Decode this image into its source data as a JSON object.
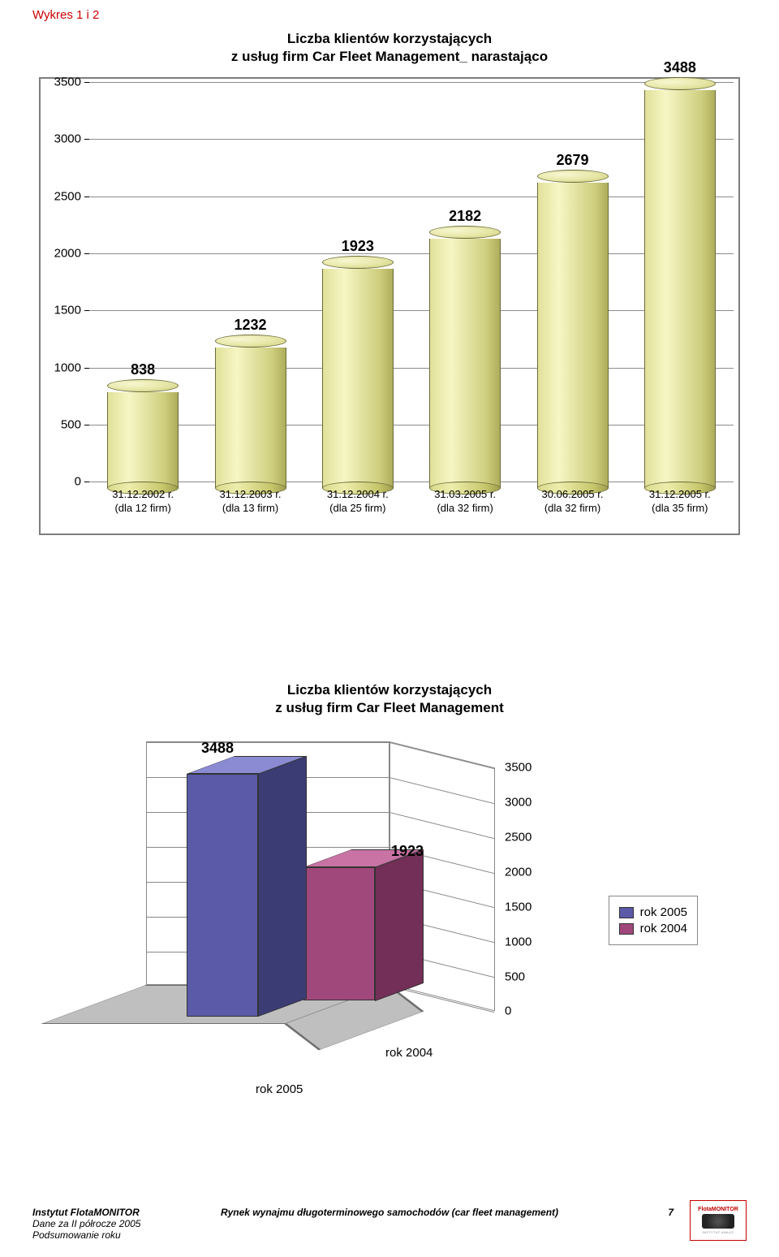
{
  "section_heading": "Wykres 1 i 2",
  "chart1": {
    "type": "bar",
    "title_line1": "Liczba klientów korzystających",
    "title_line2": "z usług firm Car Fleet Management_ narastająco",
    "ymin": 0,
    "ymax": 3500,
    "ytick_step": 500,
    "yticks": [
      0,
      500,
      1000,
      1500,
      2000,
      2500,
      3000,
      3500
    ],
    "bar_fill_gradient": [
      "#e1e19a",
      "#f6f6c5",
      "#cfcf7f",
      "#adad5c"
    ],
    "bar_stroke": "#6b6b3a",
    "grid_color": "#000000",
    "background_color": "#ffffff",
    "border_color": "#7d7d7d",
    "categories": [
      {
        "value": 838,
        "label_line1": "31.12.2002 r.",
        "label_line2": "(dla 12 firm)"
      },
      {
        "value": 1232,
        "label_line1": "31.12.2003 r.",
        "label_line2": "(dla 13 firm)"
      },
      {
        "value": 1923,
        "label_line1": "31.12.2004 r.",
        "label_line2": "(dla 25 firm)"
      },
      {
        "value": 2182,
        "label_line1": "31.03.2005 r.",
        "label_line2": "(dla 32 firm)"
      },
      {
        "value": 2679,
        "label_line1": "30.06.2005 r.",
        "label_line2": "(dla 32 firm)"
      },
      {
        "value": 3488,
        "label_line1": "31.12.2005 r.",
        "label_line2": "(dla 35 firm)"
      }
    ]
  },
  "chart2": {
    "type": "bar3d",
    "title_line1": "Liczba klientów korzystających",
    "title_line2": "z usług firm Car Fleet Management",
    "ymin": 0,
    "ymax": 3500,
    "yticks": [
      0,
      500,
      1000,
      1500,
      2000,
      2500,
      3000,
      3500
    ],
    "floor_color": "#bfbfbf",
    "wall_color": "#ffffff",
    "grid_color": "#888888",
    "series": [
      {
        "name": "rok 2005",
        "value": 3488,
        "front_color": "#5a5aa8",
        "top_color": "#8b8bd4",
        "side_color": "#3c3c75"
      },
      {
        "name": "rok 2004",
        "value": 1923,
        "front_color": "#a0487b",
        "top_color": "#c973a5",
        "side_color": "#732f57"
      }
    ],
    "legend": [
      "rok 2005",
      "rok 2004"
    ],
    "axis_category_front": "rok 2005",
    "axis_category_back": "rok 2004"
  },
  "footer": {
    "left_line1_strong": "Instytut FlotaMONITOR",
    "left_line2": "Dane za II półrocze 2005",
    "left_line3": "Podsumowanie roku",
    "center": "Rynek wynajmu długoterminowego samochodów (car fleet management)",
    "page_number": "7",
    "logo_text_top": "FlotaMONITOR",
    "logo_text_bottom": "INSTYTUT ANALIZ"
  }
}
